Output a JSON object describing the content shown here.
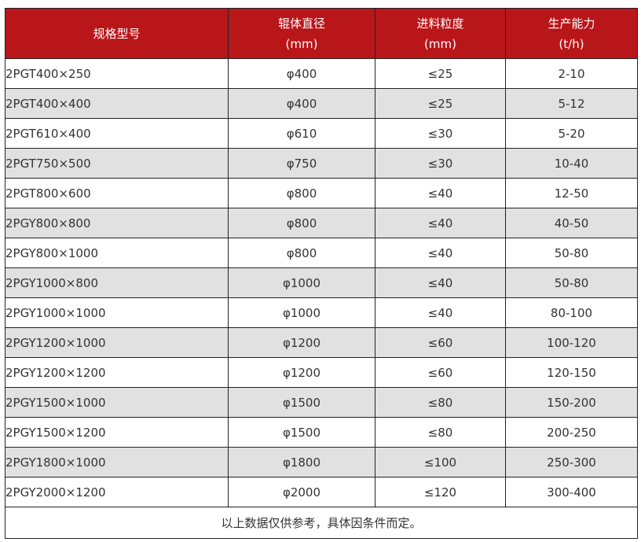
{
  "headers": [
    {
      "line1": "规格型号",
      "line2": ""
    },
    {
      "line1": "辊体直径",
      "line2": "(mm)"
    },
    {
      "line1": "进料粒度",
      "line2": "(mm)"
    },
    {
      "line1": "生产能力",
      "line2": "(t/h)"
    }
  ],
  "rows": [
    [
      "2PGT400×250",
      "φ400",
      "≤25",
      "2-10"
    ],
    [
      "2PGT400×400",
      "φ400",
      "≤25",
      "5-12"
    ],
    [
      "2PGT610×400",
      "φ610",
      "≤30",
      "5-20"
    ],
    [
      "2PGT750×500",
      "φ750",
      "≤30",
      "10-40"
    ],
    [
      "2PGT800×600",
      "φ800",
      "≤40",
      "12-50"
    ],
    [
      "2PGY800×800",
      "φ800",
      "≤40",
      "40-50"
    ],
    [
      "2PGY800×1000",
      "φ800",
      "≤40",
      "50-80"
    ],
    [
      "2PGY1000×800",
      "φ1000",
      "≤40",
      "50-80"
    ],
    [
      "2PGY1000×1000",
      "φ1000",
      "≤40",
      "80-100"
    ],
    [
      "2PGY1200×1000",
      "φ1200",
      "≤60",
      "100-120"
    ],
    [
      "2PGY1200×1200",
      "φ1200",
      "≤60",
      "120-150"
    ],
    [
      "2PGY1500×1000",
      "φ1500",
      "≤80",
      "150-200"
    ],
    [
      "2PGY1500×1200",
      "φ1500",
      "≤80",
      "200-250"
    ],
    [
      "2PGY1800×1000",
      "φ1800",
      "≤100",
      "250-300"
    ],
    [
      "2PGY2000×1200",
      "φ2000",
      "≤120",
      "300-400"
    ]
  ],
  "footer": "以上数据仅供参考，具体因条件而定。",
  "colors": {
    "header_bg": "#b9161a",
    "alt_row_bg": "#e1e1e1"
  }
}
